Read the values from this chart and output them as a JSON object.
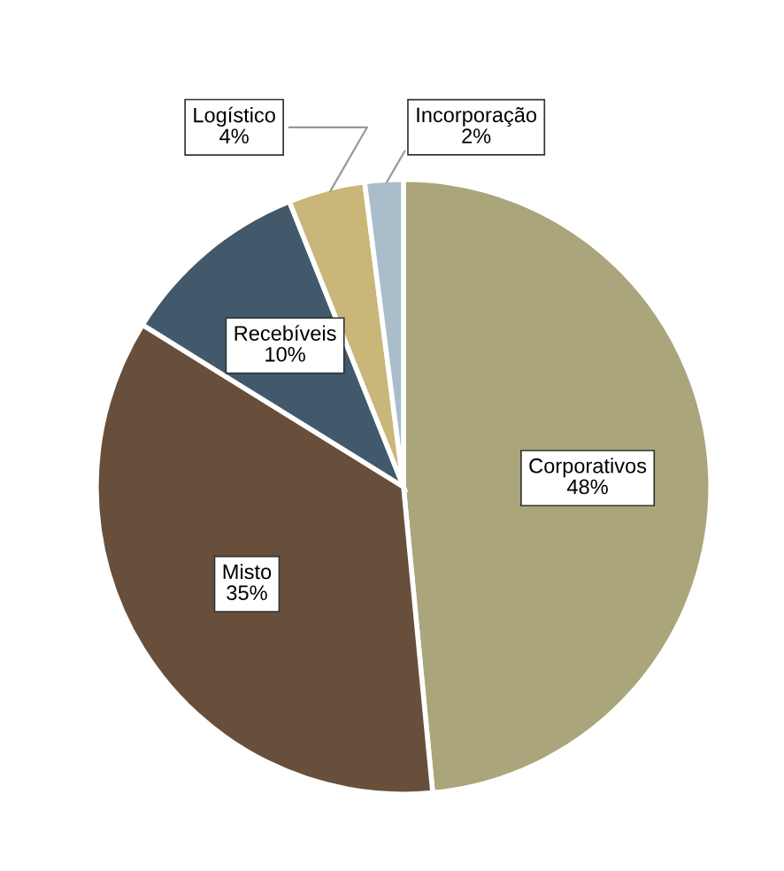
{
  "chart_data": {
    "type": "pie",
    "categories": [
      "Corporativos",
      "Misto",
      "Recebíveis",
      "Logístico",
      "Incorporação"
    ],
    "values": [
      48,
      35,
      10,
      4,
      2
    ],
    "value_labels": [
      "48%",
      "35%",
      "10%",
      "4%",
      "2%"
    ],
    "colors": [
      "#aaa57b",
      "#684f3b",
      "#42596b",
      "#c9b679",
      "#a9bdca"
    ]
  }
}
